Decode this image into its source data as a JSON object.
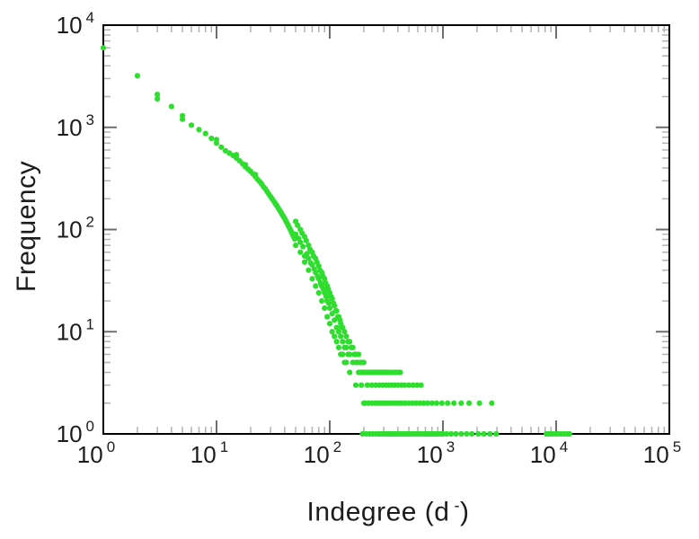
{
  "chart_data": {
    "type": "scatter",
    "title": "",
    "xlabel": "Indegree (d⁻)",
    "xlabel_parts": {
      "pre": "Indegree (d",
      "sup": "-",
      "post": ")"
    },
    "ylabel": "Frequency",
    "x_scale": "log",
    "y_scale": "log",
    "xlim": [
      1,
      100000
    ],
    "ylim": [
      1,
      10000
    ],
    "x_tick_exponents": [
      0,
      1,
      2,
      3,
      4,
      5
    ],
    "y_tick_exponents": [
      0,
      1,
      2,
      3,
      4
    ],
    "tick_base_label": "10",
    "legend": null,
    "grid": false,
    "marker_color": "#2fdd2f",
    "frame_color": "#000000",
    "major_tick_color": "#6e6e6e",
    "minor_tick_color": "#b2b2b2",
    "text_color": "#1c1c1c",
    "points": [
      [
        1,
        6000
      ],
      [
        2,
        3200
      ],
      [
        3,
        2100
      ],
      [
        3,
        1900
      ],
      [
        4,
        1600
      ],
      [
        5,
        1300
      ],
      [
        5,
        1200
      ],
      [
        6,
        1050
      ],
      [
        7,
        950
      ],
      [
        8,
        870
      ],
      [
        9,
        780
      ],
      [
        10,
        760
      ],
      [
        10,
        700
      ],
      [
        11,
        640
      ],
      [
        12,
        590
      ],
      [
        13,
        560
      ],
      [
        14,
        530
      ],
      [
        15,
        540
      ],
      [
        15,
        500
      ],
      [
        16,
        470
      ],
      [
        17,
        440
      ],
      [
        18,
        430
      ],
      [
        18,
        410
      ],
      [
        19,
        390
      ],
      [
        20,
        370
      ],
      [
        21,
        350
      ],
      [
        22,
        345
      ],
      [
        22,
        330
      ],
      [
        23,
        310
      ],
      [
        24,
        295
      ],
      [
        25,
        280
      ],
      [
        26,
        262
      ],
      [
        27,
        250
      ],
      [
        28,
        235
      ],
      [
        29,
        222
      ],
      [
        30,
        210
      ],
      [
        31,
        200
      ],
      [
        32,
        190
      ],
      [
        33,
        180
      ],
      [
        34,
        172
      ],
      [
        35,
        163
      ],
      [
        36,
        155
      ],
      [
        37,
        148
      ],
      [
        38,
        140
      ],
      [
        39,
        134
      ],
      [
        40,
        128
      ],
      [
        41,
        121
      ],
      [
        42,
        115
      ],
      [
        43,
        110
      ],
      [
        44,
        104
      ],
      [
        45,
        99
      ],
      [
        46,
        94
      ],
      [
        47,
        89
      ],
      [
        48,
        85
      ],
      [
        49,
        81
      ],
      [
        50,
        120
      ],
      [
        50,
        90
      ],
      [
        50,
        70
      ],
      [
        52,
        110
      ],
      [
        53,
        82
      ],
      [
        55,
        100
      ],
      [
        55,
        75
      ],
      [
        55,
        60
      ],
      [
        57,
        92
      ],
      [
        58,
        68
      ],
      [
        60,
        85
      ],
      [
        60,
        55
      ],
      [
        60,
        48
      ],
      [
        62,
        78
      ],
      [
        63,
        58
      ],
      [
        65,
        70
      ],
      [
        65,
        52
      ],
      [
        65,
        40
      ],
      [
        67,
        64
      ],
      [
        68,
        47
      ],
      [
        70,
        60
      ],
      [
        70,
        45
      ],
      [
        70,
        33
      ],
      [
        72,
        55
      ],
      [
        73,
        41
      ],
      [
        75,
        52
      ],
      [
        75,
        38
      ],
      [
        75,
        28
      ],
      [
        77,
        48
      ],
      [
        78,
        35
      ],
      [
        80,
        44
      ],
      [
        80,
        33
      ],
      [
        80,
        24
      ],
      [
        82,
        40
      ],
      [
        83,
        30
      ],
      [
        85,
        38
      ],
      [
        85,
        28
      ],
      [
        85,
        20
      ],
      [
        87,
        35
      ],
      [
        88,
        26
      ],
      [
        90,
        33
      ],
      [
        90,
        24
      ],
      [
        90,
        17
      ],
      [
        92,
        30
      ],
      [
        93,
        22
      ],
      [
        95,
        28
      ],
      [
        95,
        20
      ],
      [
        95,
        14
      ],
      [
        97,
        26
      ],
      [
        98,
        19
      ],
      [
        100,
        24
      ],
      [
        100,
        17
      ],
      [
        100,
        12
      ],
      [
        103,
        22
      ],
      [
        105,
        21
      ],
      [
        105,
        15
      ],
      [
        105,
        10
      ],
      [
        108,
        19
      ],
      [
        110,
        18
      ],
      [
        110,
        13
      ],
      [
        110,
        9
      ],
      [
        113,
        16
      ],
      [
        115,
        16
      ],
      [
        115,
        11
      ],
      [
        115,
        8
      ],
      [
        118,
        14
      ],
      [
        120,
        14
      ],
      [
        120,
        10
      ],
      [
        120,
        7
      ],
      [
        123,
        13
      ],
      [
        125,
        12
      ],
      [
        125,
        9
      ],
      [
        125,
        6
      ],
      [
        128,
        11
      ],
      [
        130,
        11
      ],
      [
        130,
        8
      ],
      [
        130,
        6
      ],
      [
        135,
        10
      ],
      [
        135,
        7
      ],
      [
        135,
        5
      ],
      [
        140,
        9
      ],
      [
        140,
        7
      ],
      [
        140,
        5
      ],
      [
        145,
        8
      ],
      [
        145,
        6
      ],
      [
        150,
        8
      ],
      [
        150,
        6
      ],
      [
        150,
        4
      ],
      [
        155,
        7
      ],
      [
        160,
        7
      ],
      [
        160,
        5
      ],
      [
        165,
        6
      ],
      [
        170,
        6
      ],
      [
        170,
        5
      ],
      [
        170,
        3
      ],
      [
        175,
        5
      ],
      [
        180,
        6
      ],
      [
        180,
        4
      ],
      [
        185,
        5
      ],
      [
        190,
        5
      ],
      [
        190,
        4
      ],
      [
        190,
        3
      ],
      [
        195,
        4
      ],
      [
        200,
        5
      ],
      [
        200,
        4
      ],
      [
        200,
        2
      ],
      [
        210,
        4
      ],
      [
        220,
        4
      ],
      [
        230,
        4
      ],
      [
        240,
        4
      ],
      [
        250,
        4
      ],
      [
        260,
        4
      ],
      [
        270,
        4
      ],
      [
        280,
        4
      ],
      [
        290,
        4
      ],
      [
        300,
        4
      ],
      [
        310,
        4
      ],
      [
        320,
        4
      ],
      [
        330,
        4
      ],
      [
        345,
        4
      ],
      [
        360,
        4
      ],
      [
        380,
        4
      ],
      [
        400,
        4
      ],
      [
        420,
        4
      ],
      [
        215,
        3
      ],
      [
        235,
        3
      ],
      [
        255,
        3
      ],
      [
        275,
        3
      ],
      [
        295,
        3
      ],
      [
        315,
        3
      ],
      [
        335,
        3
      ],
      [
        355,
        3
      ],
      [
        375,
        3
      ],
      [
        400,
        3
      ],
      [
        430,
        3
      ],
      [
        460,
        3
      ],
      [
        500,
        3
      ],
      [
        545,
        3
      ],
      [
        590,
        3
      ],
      [
        640,
        3
      ],
      [
        205,
        2
      ],
      [
        220,
        2
      ],
      [
        235,
        2
      ],
      [
        250,
        2
      ],
      [
        265,
        2
      ],
      [
        280,
        2
      ],
      [
        295,
        2
      ],
      [
        310,
        2
      ],
      [
        325,
        2
      ],
      [
        345,
        2
      ],
      [
        365,
        2
      ],
      [
        385,
        2
      ],
      [
        410,
        2
      ],
      [
        435,
        2
      ],
      [
        465,
        2
      ],
      [
        500,
        2
      ],
      [
        540,
        2
      ],
      [
        580,
        2
      ],
      [
        625,
        2
      ],
      [
        675,
        2
      ],
      [
        730,
        2
      ],
      [
        800,
        2
      ],
      [
        880,
        2
      ],
      [
        980,
        2
      ],
      [
        1100,
        2
      ],
      [
        1250,
        2
      ],
      [
        1450,
        2
      ],
      [
        1700,
        2
      ],
      [
        2100,
        2
      ],
      [
        2700,
        2
      ],
      [
        195,
        1
      ],
      [
        210,
        1
      ],
      [
        225,
        1
      ],
      [
        240,
        1
      ],
      [
        255,
        1
      ],
      [
        270,
        1
      ],
      [
        285,
        1
      ],
      [
        300,
        1
      ],
      [
        315,
        1
      ],
      [
        330,
        1
      ],
      [
        345,
        1
      ],
      [
        360,
        1
      ],
      [
        378,
        1
      ],
      [
        396,
        1
      ],
      [
        415,
        1
      ],
      [
        435,
        1
      ],
      [
        455,
        1
      ],
      [
        476,
        1
      ],
      [
        498,
        1
      ],
      [
        520,
        1
      ],
      [
        545,
        1
      ],
      [
        570,
        1
      ],
      [
        597,
        1
      ],
      [
        625,
        1
      ],
      [
        654,
        1
      ],
      [
        685,
        1
      ],
      [
        717,
        1
      ],
      [
        750,
        1
      ],
      [
        785,
        1
      ],
      [
        822,
        1
      ],
      [
        860,
        1
      ],
      [
        900,
        1
      ],
      [
        950,
        1
      ],
      [
        1000,
        1
      ],
      [
        1080,
        1
      ],
      [
        1180,
        1
      ],
      [
        1300,
        1
      ],
      [
        1450,
        1
      ],
      [
        1620,
        1
      ],
      [
        1800,
        1
      ],
      [
        2050,
        1
      ],
      [
        2300,
        1
      ],
      [
        2600,
        1
      ],
      [
        2950,
        1
      ],
      [
        8200,
        1
      ],
      [
        8700,
        1
      ],
      [
        9200,
        1
      ],
      [
        9800,
        1
      ],
      [
        10400,
        1
      ],
      [
        11000,
        1
      ],
      [
        11700,
        1
      ],
      [
        12400,
        1
      ],
      [
        13100,
        1
      ]
    ]
  }
}
